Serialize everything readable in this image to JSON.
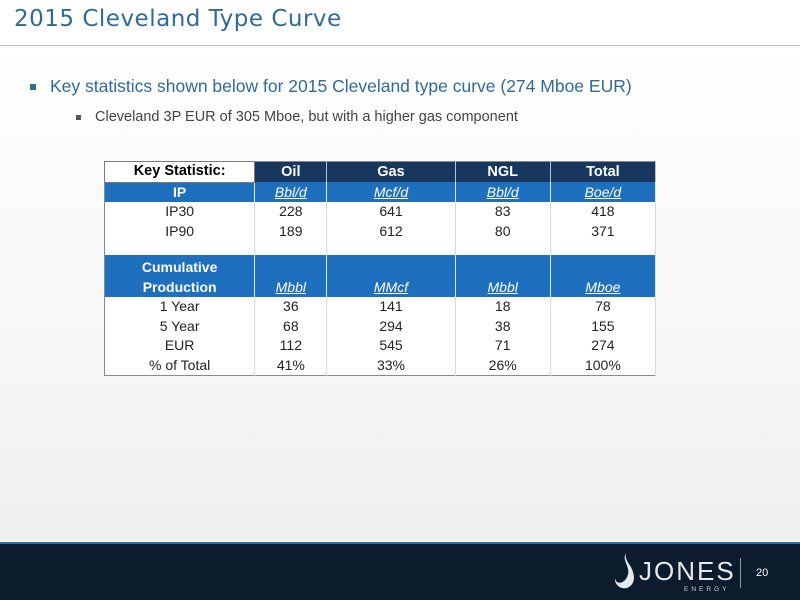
{
  "slide": {
    "title": "2015 Cleveland Type Curve",
    "bullet_main": "Key statistics shown below for 2015 Cleveland type curve (274 Mboe EUR)",
    "bullet_sub": "Cleveland 3P EUR of 305 Mboe, but with a higher gas component"
  },
  "table": {
    "headers": [
      "Key Statistic:",
      "Oil",
      "Gas",
      "NGL",
      "Total"
    ],
    "ip_section": {
      "label": "IP",
      "units": [
        "Bbl/d",
        "Mcf/d",
        "Bbl/d",
        "Boe/d"
      ],
      "rows": [
        {
          "label": "IP30",
          "values": [
            "228",
            "641",
            "83",
            "418"
          ]
        },
        {
          "label": "IP90",
          "values": [
            "189",
            "612",
            "80",
            "371"
          ]
        }
      ]
    },
    "cum_section": {
      "label_line1": "Cumulative",
      "label_line2": "Production",
      "units": [
        "Mbbl",
        "MMcf",
        "Mbbl",
        "Mboe"
      ],
      "rows": [
        {
          "label": "1 Year",
          "values": [
            "36",
            "141",
            "18",
            "78"
          ]
        },
        {
          "label": "5 Year",
          "values": [
            "68",
            "294",
            "38",
            "155"
          ]
        },
        {
          "label": "EUR",
          "values": [
            "112",
            "545",
            "71",
            "274"
          ]
        },
        {
          "label": "% of Total",
          "values": [
            "41%",
            "33%",
            "26%",
            "100%"
          ]
        }
      ]
    }
  },
  "footer": {
    "logo_word": "JONES",
    "logo_sub": "ENERGY",
    "page_number": "20"
  },
  "colors": {
    "title_blue": "#2f6a9b",
    "header_navy": "#17375e",
    "unit_blue": "#1f6fbf",
    "footer_bg": "#0c1c2c"
  }
}
